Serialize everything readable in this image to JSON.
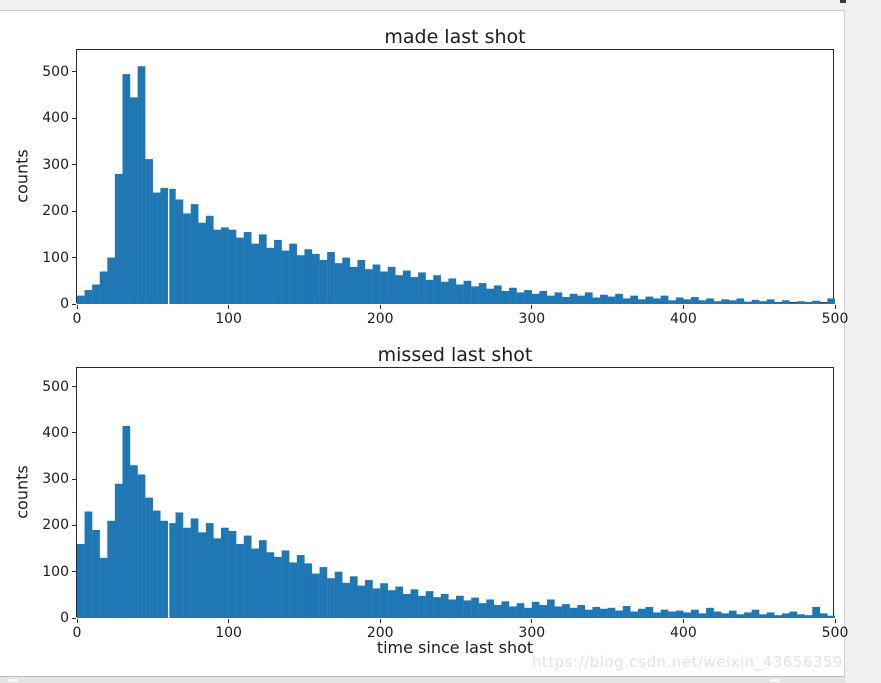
{
  "page": {
    "watermark": "https://blog.csdn.net/weixin_43656359",
    "colors": {
      "page_bg": "#f0f0f0",
      "figure_bg": "#ffffff",
      "bar": "#1f77b4",
      "spine": "#2a2a2a",
      "watermark": "#e2e2e2"
    }
  },
  "chart_data": [
    {
      "type": "bar",
      "subtype": "histogram",
      "title": "made last shot",
      "xlabel": "",
      "ylabel": "counts",
      "bin_start": 0,
      "bin_width": 5,
      "xlim": [
        0,
        500
      ],
      "ylim": [
        0,
        547
      ],
      "xticks": [
        0,
        100,
        200,
        300,
        400,
        500
      ],
      "yticks": [
        0,
        100,
        200,
        300,
        400,
        500
      ],
      "grid": false,
      "legend": null,
      "gap_line_x": 60,
      "values": [
        18,
        30,
        42,
        70,
        100,
        280,
        495,
        445,
        512,
        312,
        240,
        250,
        248,
        225,
        195,
        215,
        175,
        190,
        160,
        165,
        160,
        143,
        155,
        130,
        150,
        121,
        138,
        115,
        130,
        105,
        118,
        108,
        95,
        112,
        88,
        100,
        80,
        95,
        75,
        85,
        70,
        80,
        62,
        72,
        58,
        68,
        52,
        62,
        48,
        55,
        42,
        50,
        38,
        45,
        33,
        40,
        28,
        35,
        25,
        30,
        22,
        28,
        18,
        25,
        15,
        22,
        18,
        25,
        14,
        20,
        16,
        22,
        12,
        18,
        10,
        16,
        12,
        18,
        8,
        14,
        10,
        15,
        8,
        12,
        6,
        10,
        8,
        12,
        5,
        9,
        6,
        10,
        4,
        8,
        3,
        6,
        4,
        7,
        3,
        12
      ]
    },
    {
      "type": "bar",
      "subtype": "histogram",
      "title": "missed last shot",
      "xlabel": "time since last shot",
      "ylabel": "counts",
      "bin_start": 0,
      "bin_width": 5,
      "xlim": [
        0,
        500
      ],
      "ylim": [
        0,
        540
      ],
      "xticks": [
        0,
        100,
        200,
        300,
        400,
        500
      ],
      "yticks": [
        0,
        100,
        200,
        300,
        400,
        500
      ],
      "grid": false,
      "legend": null,
      "gap_line_x": 60,
      "values": [
        160,
        230,
        190,
        130,
        210,
        290,
        415,
        330,
        310,
        260,
        232,
        210,
        205,
        228,
        195,
        215,
        185,
        205,
        172,
        195,
        188,
        160,
        178,
        150,
        168,
        142,
        132,
        146,
        120,
        136,
        118,
        96,
        110,
        86,
        100,
        76,
        90,
        70,
        82,
        64,
        75,
        60,
        68,
        52,
        62,
        48,
        58,
        45,
        52,
        40,
        48,
        38,
        44,
        32,
        40,
        28,
        36,
        25,
        32,
        22,
        35,
        28,
        40,
        25,
        30,
        22,
        28,
        18,
        24,
        20,
        22,
        16,
        26,
        14,
        20,
        24,
        12,
        18,
        14,
        16,
        12,
        18,
        10,
        22,
        14,
        10,
        16,
        8,
        12,
        18,
        8,
        12,
        6,
        10,
        14,
        8,
        6,
        24,
        10,
        5
      ]
    }
  ]
}
